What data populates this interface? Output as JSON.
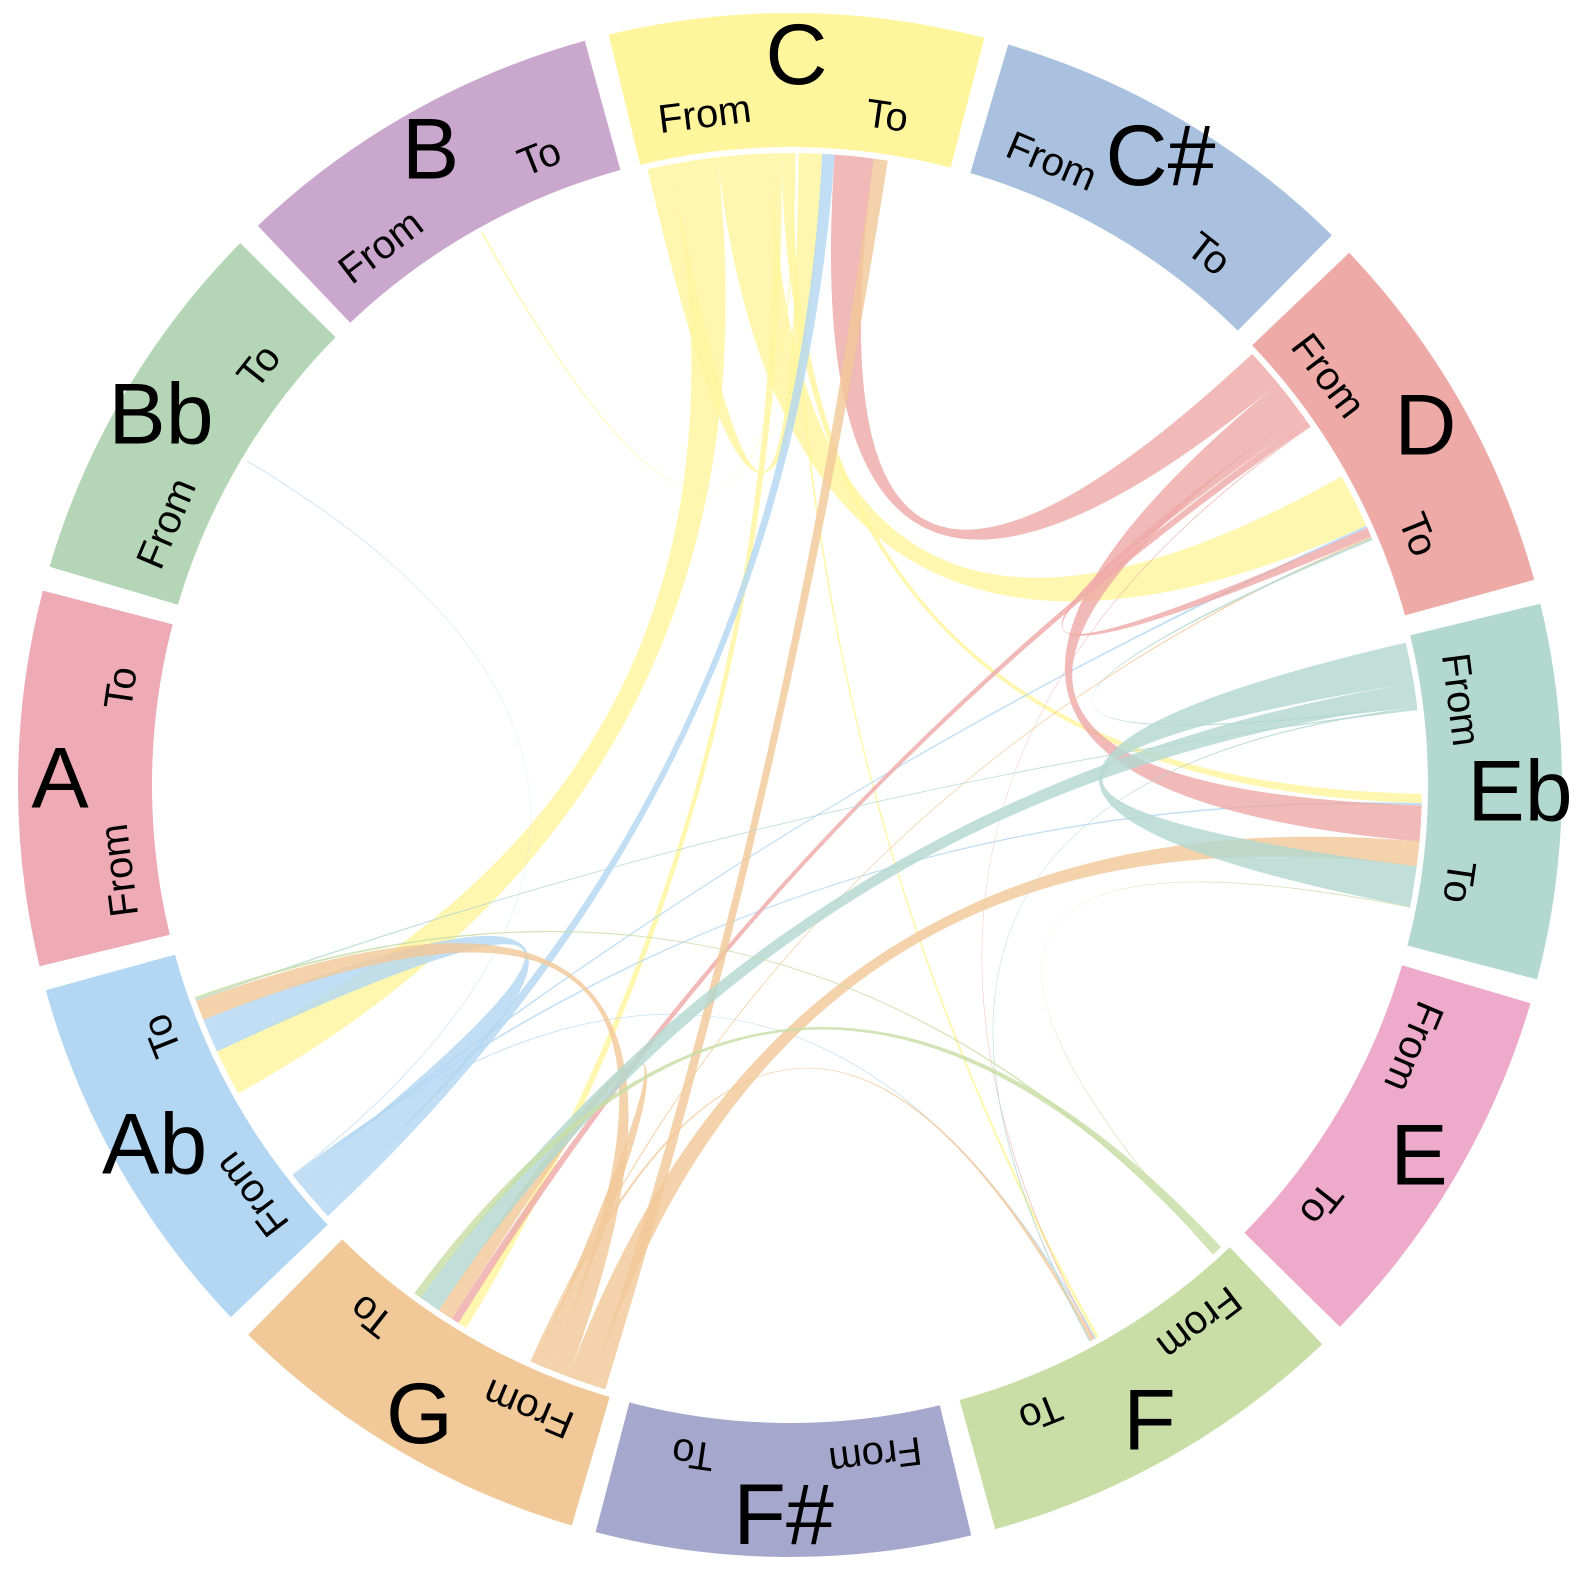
{
  "chart_data": {
    "type": "chord",
    "title": "",
    "nodes": [
      {
        "name": "C",
        "color": "#fff59d",
        "from_label": "From",
        "to_label": "To"
      },
      {
        "name": "C#",
        "color": "#a9c1de",
        "from_label": "From",
        "to_label": "To"
      },
      {
        "name": "D",
        "color": "#eeaaa7",
        "from_label": "From",
        "to_label": "To"
      },
      {
        "name": "Eb",
        "color": "#b3d8d0",
        "from_label": "From",
        "to_label": "To"
      },
      {
        "name": "E",
        "color": "#eeaacb",
        "from_label": "From",
        "to_label": "To"
      },
      {
        "name": "F",
        "color": "#c8dea6",
        "from_label": "From",
        "to_label": "To"
      },
      {
        "name": "F#",
        "color": "#a5a8cc",
        "from_label": "From",
        "to_label": "To"
      },
      {
        "name": "G",
        "color": "#f1c898",
        "from_label": "From",
        "to_label": "To"
      },
      {
        "name": "Ab",
        "color": "#b3d7f2",
        "from_label": "From",
        "to_label": "To"
      },
      {
        "name": "A",
        "color": "#eeaab5",
        "from_label": "From",
        "to_label": "To"
      },
      {
        "name": "Bb",
        "color": "#b4d6b7",
        "from_label": "From",
        "to_label": "To"
      },
      {
        "name": "B",
        "color": "#caa7cd",
        "from_label": "From",
        "to_label": "To"
      }
    ],
    "flows": [
      {
        "from": "C",
        "to": "C",
        "value": 1.5
      },
      {
        "from": "C",
        "to": "Ab",
        "value": 3.0
      },
      {
        "from": "C",
        "to": "D",
        "value": 3.5
      },
      {
        "from": "C",
        "to": "G",
        "value": 0.6
      },
      {
        "from": "C",
        "to": "Eb",
        "value": 0.6
      },
      {
        "from": "C",
        "to": "F",
        "value": 0.2
      },
      {
        "from": "C",
        "to": "B",
        "value": 0.1
      },
      {
        "from": "Ab",
        "to": "C",
        "value": 0.8
      },
      {
        "from": "Ab",
        "to": "Ab",
        "value": 2.2
      },
      {
        "from": "Ab",
        "to": "D",
        "value": 0.15
      },
      {
        "from": "Ab",
        "to": "Eb",
        "value": 0.15
      },
      {
        "from": "Ab",
        "to": "F",
        "value": 0.1
      },
      {
        "from": "Ab",
        "to": "Bb",
        "value": 0.05
      },
      {
        "from": "D",
        "to": "C",
        "value": 2.5
      },
      {
        "from": "D",
        "to": "Eb",
        "value": 2.3
      },
      {
        "from": "D",
        "to": "D",
        "value": 0.6
      },
      {
        "from": "D",
        "to": "G",
        "value": 0.5
      },
      {
        "from": "D",
        "to": "F",
        "value": 0.05
      },
      {
        "from": "G",
        "to": "C",
        "value": 0.9
      },
      {
        "from": "G",
        "to": "Eb",
        "value": 1.6
      },
      {
        "from": "G",
        "to": "Ab",
        "value": 1.3
      },
      {
        "from": "G",
        "to": "G",
        "value": 1.0
      },
      {
        "from": "G",
        "to": "F",
        "value": 0.2
      },
      {
        "from": "G",
        "to": "D",
        "value": 0.1
      },
      {
        "from": "Eb",
        "to": "Eb",
        "value": 2.6
      },
      {
        "from": "Eb",
        "to": "G",
        "value": 1.4
      },
      {
        "from": "Eb",
        "to": "D",
        "value": 0.15
      },
      {
        "from": "Eb",
        "to": "F",
        "value": 0.1
      },
      {
        "from": "Eb",
        "to": "Ab",
        "value": 0.1
      },
      {
        "from": "F",
        "to": "G",
        "value": 0.5
      },
      {
        "from": "F",
        "to": "Ab",
        "value": 0.15
      },
      {
        "from": "F",
        "to": "Eb",
        "value": 0.05
      }
    ]
  }
}
